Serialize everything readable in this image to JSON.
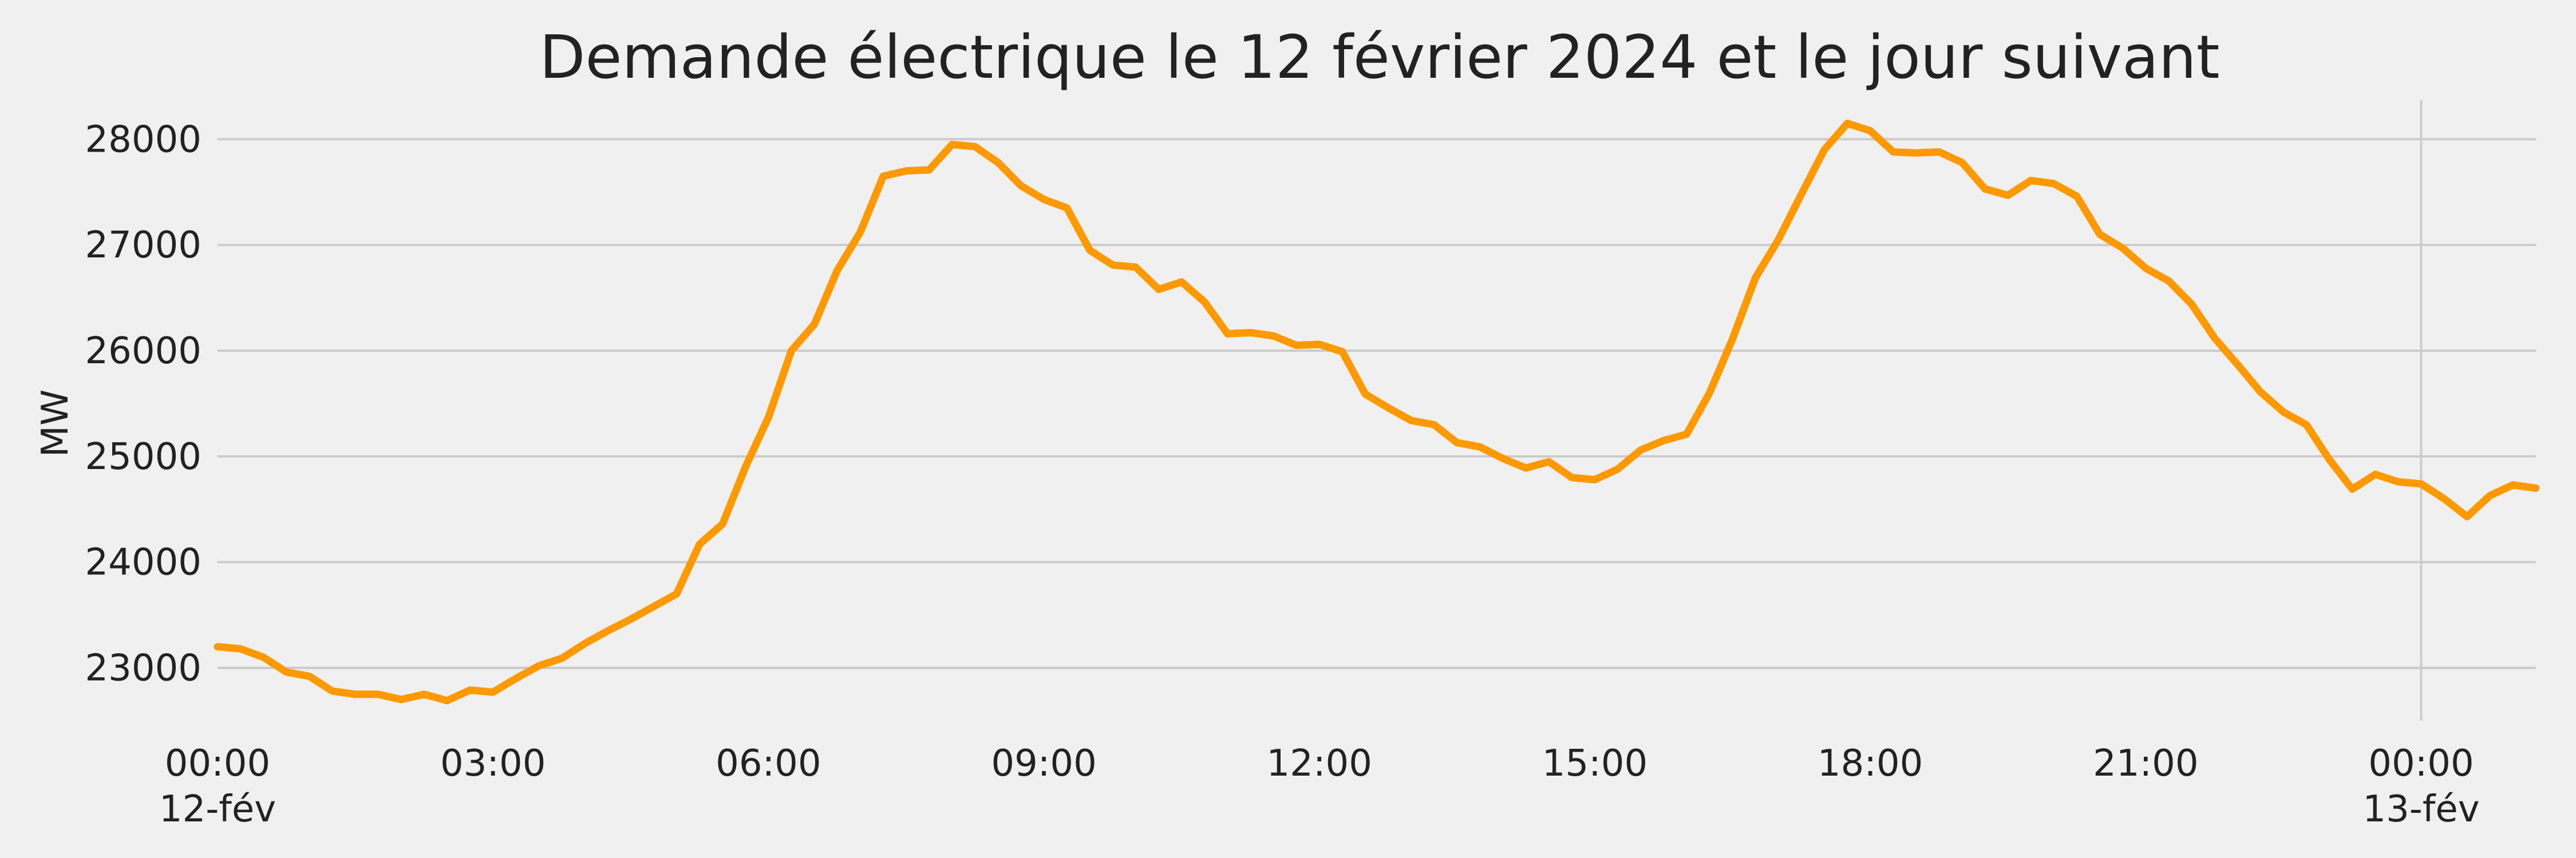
{
  "chart_data": {
    "type": "line",
    "title": "Demande électrique le 12 février 2024 et le jour suivant",
    "xlabel": "",
    "ylabel": "MW",
    "ylim": [
      22500,
      28370
    ],
    "xlim": [
      "2024-02-12 00:00",
      "2024-02-13 01:15"
    ],
    "grid": true,
    "legend": "none",
    "x_ticks": [
      {
        "time": "2024-02-12 00:00",
        "line1": "00:00",
        "line2": "12-fév"
      },
      {
        "time": "2024-02-12 03:00",
        "line1": "03:00",
        "line2": ""
      },
      {
        "time": "2024-02-12 06:00",
        "line1": "06:00",
        "line2": ""
      },
      {
        "time": "2024-02-12 09:00",
        "line1": "09:00",
        "line2": ""
      },
      {
        "time": "2024-02-12 12:00",
        "line1": "12:00",
        "line2": ""
      },
      {
        "time": "2024-02-12 15:00",
        "line1": "15:00",
        "line2": ""
      },
      {
        "time": "2024-02-12 18:00",
        "line1": "18:00",
        "line2": ""
      },
      {
        "time": "2024-02-12 21:00",
        "line1": "21:00",
        "line2": ""
      },
      {
        "time": "2024-02-13 00:00",
        "line1": "00:00",
        "line2": "13-fév"
      }
    ],
    "y_ticks": [
      23000,
      24000,
      25000,
      26000,
      27000,
      28000
    ],
    "series": [
      {
        "color": "#ff9900",
        "x": [
          "2024-02-12 00:00",
          "2024-02-12 00:15",
          "2024-02-12 00:30",
          "2024-02-12 00:45",
          "2024-02-12 01:00",
          "2024-02-12 01:15",
          "2024-02-12 01:30",
          "2024-02-12 01:45",
          "2024-02-12 02:00",
          "2024-02-12 02:15",
          "2024-02-12 02:30",
          "2024-02-12 02:45",
          "2024-02-12 03:00",
          "2024-02-12 03:15",
          "2024-02-12 03:30",
          "2024-02-12 03:45",
          "2024-02-12 04:00",
          "2024-02-12 04:15",
          "2024-02-12 04:30",
          "2024-02-12 04:45",
          "2024-02-12 05:00",
          "2024-02-12 05:15",
          "2024-02-12 05:30",
          "2024-02-12 05:45",
          "2024-02-12 06:00",
          "2024-02-12 06:15",
          "2024-02-12 06:30",
          "2024-02-12 06:45",
          "2024-02-12 07:00",
          "2024-02-12 07:15",
          "2024-02-12 07:30",
          "2024-02-12 07:45",
          "2024-02-12 08:00",
          "2024-02-12 08:15",
          "2024-02-12 08:30",
          "2024-02-12 08:45",
          "2024-02-12 09:00",
          "2024-02-12 09:15",
          "2024-02-12 09:30",
          "2024-02-12 09:45",
          "2024-02-12 10:00",
          "2024-02-12 10:15",
          "2024-02-12 10:30",
          "2024-02-12 10:45",
          "2024-02-12 11:00",
          "2024-02-12 11:15",
          "2024-02-12 11:30",
          "2024-02-12 11:45",
          "2024-02-12 12:00",
          "2024-02-12 12:15",
          "2024-02-12 12:30",
          "2024-02-12 12:45",
          "2024-02-12 13:00",
          "2024-02-12 13:15",
          "2024-02-12 13:30",
          "2024-02-12 13:45",
          "2024-02-12 14:00",
          "2024-02-12 14:15",
          "2024-02-12 14:30",
          "2024-02-12 14:45",
          "2024-02-12 15:00",
          "2024-02-12 15:15",
          "2024-02-12 15:30",
          "2024-02-12 15:45",
          "2024-02-12 16:00",
          "2024-02-12 16:15",
          "2024-02-12 16:30",
          "2024-02-12 16:45",
          "2024-02-12 17:00",
          "2024-02-12 17:15",
          "2024-02-12 17:30",
          "2024-02-12 17:45",
          "2024-02-12 18:00",
          "2024-02-12 18:15",
          "2024-02-12 18:30",
          "2024-02-12 18:45",
          "2024-02-12 19:00",
          "2024-02-12 19:15",
          "2024-02-12 19:30",
          "2024-02-12 19:45",
          "2024-02-12 20:00",
          "2024-02-12 20:15",
          "2024-02-12 20:30",
          "2024-02-12 20:45",
          "2024-02-12 21:00",
          "2024-02-12 21:15",
          "2024-02-12 21:30",
          "2024-02-12 21:45",
          "2024-02-12 22:00",
          "2024-02-12 22:15",
          "2024-02-12 22:30",
          "2024-02-12 22:45",
          "2024-02-12 23:00",
          "2024-02-12 23:15",
          "2024-02-12 23:30",
          "2024-02-12 23:45",
          "2024-02-13 00:00",
          "2024-02-13 00:15",
          "2024-02-13 00:30",
          "2024-02-13 00:45",
          "2024-02-13 01:00",
          "2024-02-13 01:15"
        ],
        "y": [
          23200,
          23180,
          23100,
          22960,
          22920,
          22780,
          22750,
          22750,
          22700,
          22750,
          22690,
          22790,
          22770,
          22900,
          23020,
          23090,
          23230,
          23350,
          23460,
          23580,
          23700,
          24170,
          24360,
          24900,
          25370,
          26000,
          26250,
          26760,
          27120,
          27650,
          27700,
          27710,
          27950,
          27930,
          27780,
          27560,
          27430,
          27350,
          26950,
          26810,
          26790,
          26580,
          26650,
          26460,
          26160,
          26170,
          26140,
          26050,
          26060,
          25990,
          25590,
          25460,
          25340,
          25300,
          25130,
          25090,
          24980,
          24890,
          24950,
          24800,
          24780,
          24880,
          25060,
          25150,
          25210,
          25600,
          26110,
          26690,
          27050,
          27480,
          27900,
          28150,
          28080,
          27880,
          27870,
          27880,
          27780,
          27530,
          27470,
          27610,
          27580,
          27460,
          27100,
          26970,
          26780,
          26660,
          26440,
          26120,
          25870,
          25610,
          25420,
          25300,
          24970,
          24690,
          24830,
          24760,
          24740,
          24600,
          24430,
          24630,
          24730,
          24700
        ]
      }
    ]
  }
}
